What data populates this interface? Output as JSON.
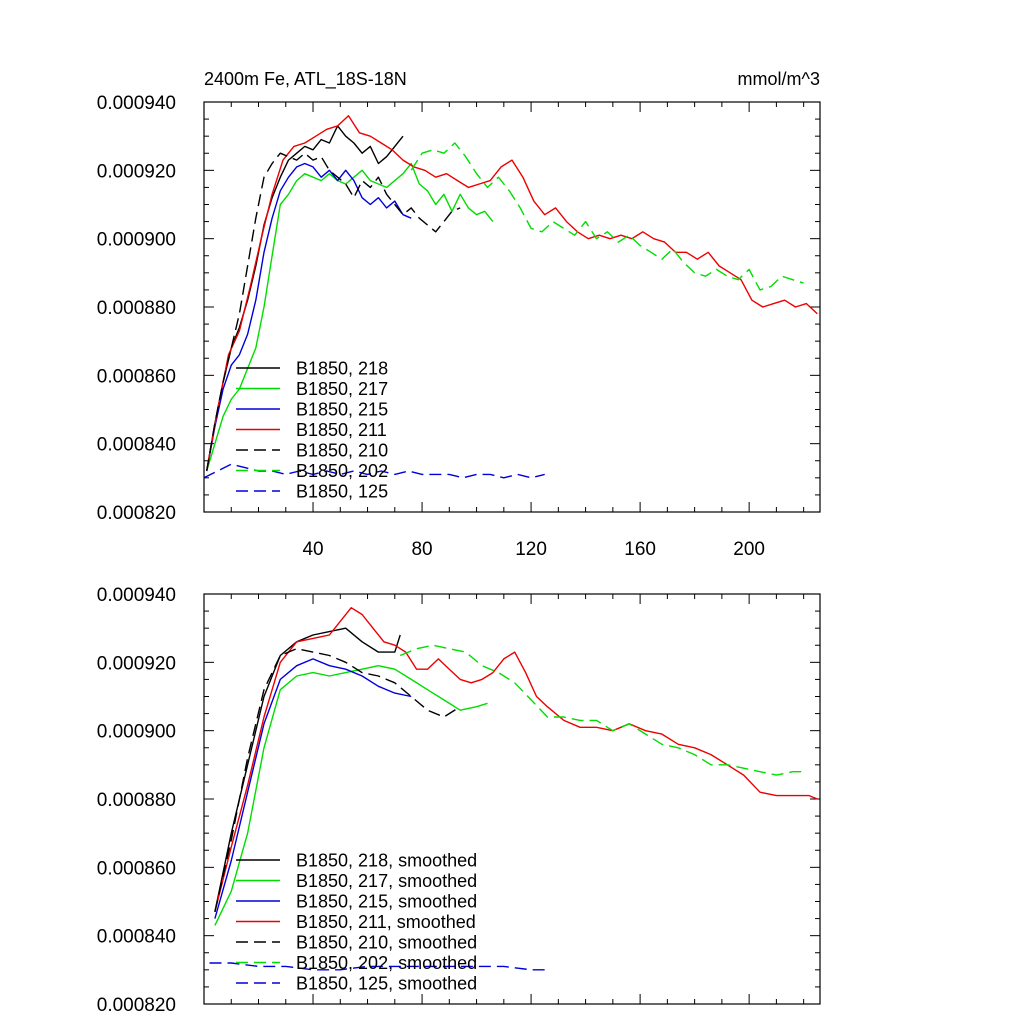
{
  "chart_data": [
    {
      "type": "line",
      "title": "2400m Fe, ATL_18S-18N",
      "units_label": "mmol/m^3",
      "xlim": [
        0,
        226
      ],
      "ylim": [
        0.00082,
        0.00094
      ],
      "xticks": [
        40,
        80,
        120,
        160,
        200
      ],
      "yticks": [
        "0.000820",
        "0.000840",
        "0.000860",
        "0.000880",
        "0.000900",
        "0.000920",
        "0.000940"
      ],
      "grid": false,
      "legend_position": "lower-left",
      "series": [
        {
          "name": "B1850, 218",
          "color": "#000000",
          "dash": false,
          "x": [
            1,
            4,
            7,
            10,
            13,
            16,
            19,
            22,
            25,
            28,
            31,
            34,
            37,
            40,
            43,
            46,
            49,
            52,
            55,
            58,
            61,
            64,
            67,
            70,
            73
          ],
          "y": [
            0.000832,
            0.000846,
            0.000858,
            0.000868,
            0.000874,
            0.000882,
            0.000892,
            0.000904,
            0.000912,
            0.000918,
            0.000923,
            0.000925,
            0.000927,
            0.000926,
            0.000929,
            0.000928,
            0.000933,
            0.00093,
            0.000928,
            0.000925,
            0.000927,
            0.000922,
            0.000924,
            0.000927,
            0.00093
          ]
        },
        {
          "name": "B1850, 217",
          "color": "#00dd00",
          "dash": false,
          "x": [
            1,
            4,
            7,
            10,
            13,
            16,
            19,
            22,
            25,
            28,
            31,
            34,
            37,
            40,
            43,
            46,
            49,
            52,
            55,
            58,
            61,
            64,
            67,
            70,
            73,
            76,
            79,
            82,
            85,
            88,
            91,
            94,
            97,
            100,
            103,
            106
          ],
          "y": [
            0.000832,
            0.00084,
            0.000848,
            0.000853,
            0.000856,
            0.000862,
            0.000868,
            0.00088,
            0.000895,
            0.00091,
            0.000913,
            0.000917,
            0.000919,
            0.000918,
            0.000917,
            0.000919,
            0.000917,
            0.000916,
            0.000918,
            0.00092,
            0.000917,
            0.000916,
            0.000915,
            0.000917,
            0.000919,
            0.000922,
            0.000916,
            0.000914,
            0.00091,
            0.000913,
            0.000908,
            0.000913,
            0.000909,
            0.000907,
            0.000908,
            0.000905
          ]
        },
        {
          "name": "B1850, 215",
          "color": "#0000dd",
          "dash": false,
          "x": [
            1,
            4,
            7,
            10,
            13,
            16,
            19,
            22,
            25,
            28,
            31,
            34,
            37,
            40,
            43,
            46,
            49,
            52,
            55,
            58,
            61,
            64,
            67,
            70,
            73,
            76
          ],
          "y": [
            0.000832,
            0.000845,
            0.000856,
            0.000863,
            0.000866,
            0.000872,
            0.000882,
            0.000896,
            0.000906,
            0.000914,
            0.000918,
            0.000921,
            0.000922,
            0.000921,
            0.000918,
            0.00092,
            0.000917,
            0.00092,
            0.000917,
            0.000912,
            0.00091,
            0.000912,
            0.000909,
            0.000911,
            0.000907,
            0.000906
          ]
        },
        {
          "name": "B1850, 211",
          "color": "#ee0000",
          "dash": false,
          "x": [
            1,
            5,
            9,
            13,
            17,
            21,
            25,
            29,
            33,
            37,
            41,
            45,
            49,
            53,
            57,
            61,
            65,
            69,
            73,
            77,
            81,
            85,
            89,
            93,
            97,
            101,
            105,
            109,
            113,
            117,
            121,
            125,
            129,
            133,
            137,
            141,
            145,
            149,
            153,
            157,
            161,
            165,
            169,
            173,
            177,
            181,
            185,
            189,
            193,
            197,
            201,
            205,
            209,
            213,
            217,
            221,
            225
          ],
          "y": [
            0.000832,
            0.00085,
            0.000866,
            0.000873,
            0.000886,
            0.0009,
            0.000913,
            0.000923,
            0.000927,
            0.000928,
            0.00093,
            0.000932,
            0.000933,
            0.000936,
            0.000931,
            0.00093,
            0.000928,
            0.000926,
            0.000923,
            0.000921,
            0.00092,
            0.000918,
            0.000919,
            0.000917,
            0.000915,
            0.000916,
            0.000917,
            0.000921,
            0.000923,
            0.000918,
            0.000911,
            0.000907,
            0.000909,
            0.000905,
            0.000902,
            0.0009,
            0.000901,
            0.0009,
            0.000901,
            0.0009,
            0.000902,
            0.0009,
            0.000899,
            0.000896,
            0.000896,
            0.000894,
            0.000896,
            0.000892,
            0.00089,
            0.000888,
            0.000882,
            0.00088,
            0.000881,
            0.000882,
            0.00088,
            0.000881,
            0.000878
          ]
        },
        {
          "name": "B1850, 210",
          "color": "#000000",
          "dash": true,
          "x": [
            1,
            4,
            7,
            10,
            13,
            16,
            19,
            22,
            25,
            28,
            31,
            34,
            37,
            40,
            43,
            46,
            49,
            52,
            55,
            58,
            61,
            64,
            67,
            70,
            73,
            76,
            79,
            82,
            85,
            88,
            91,
            94
          ],
          "y": [
            0.000832,
            0.000846,
            0.000858,
            0.000868,
            0.000878,
            0.000892,
            0.000906,
            0.000918,
            0.000922,
            0.000925,
            0.000924,
            0.000923,
            0.000925,
            0.000923,
            0.000924,
            0.00092,
            0.000918,
            0.000916,
            0.000912,
            0.000917,
            0.000915,
            0.000918,
            0.000913,
            0.00091,
            0.000907,
            0.000909,
            0.000906,
            0.000904,
            0.000902,
            0.000905,
            0.000908,
            0.000909
          ]
        },
        {
          "name": "B1850, 202",
          "color": "#00dd00",
          "dash": true,
          "x": [
            76,
            80,
            84,
            88,
            92,
            96,
            100,
            104,
            108,
            112,
            116,
            120,
            124,
            128,
            132,
            136,
            140,
            144,
            148,
            152,
            156,
            160,
            164,
            168,
            172,
            176,
            180,
            184,
            188,
            192,
            196,
            200,
            204,
            208,
            212,
            216,
            220
          ],
          "y": [
            0.00092,
            0.000925,
            0.000926,
            0.000925,
            0.000928,
            0.000924,
            0.000919,
            0.000915,
            0.000918,
            0.000914,
            0.000909,
            0.000903,
            0.000902,
            0.000905,
            0.000903,
            0.000901,
            0.000905,
            0.0009,
            0.000902,
            0.000899,
            0.000901,
            0.000898,
            0.000896,
            0.000894,
            0.000897,
            0.000893,
            0.00089,
            0.000889,
            0.000891,
            0.000889,
            0.000888,
            0.000891,
            0.000885,
            0.000886,
            0.000889,
            0.000888,
            0.000887
          ]
        },
        {
          "name": "B1850, 125",
          "color": "#0000dd",
          "dash": true,
          "x": [
            0,
            5,
            10,
            15,
            20,
            25,
            30,
            35,
            40,
            45,
            50,
            55,
            60,
            65,
            70,
            75,
            80,
            85,
            90,
            95,
            100,
            105,
            110,
            115,
            120,
            125
          ],
          "y": [
            0.00083,
            0.000832,
            0.000834,
            0.000833,
            0.000832,
            0.000832,
            0.000831,
            0.000832,
            0.000831,
            0.000832,
            0.000831,
            0.000832,
            0.000831,
            0.000832,
            0.000831,
            0.000832,
            0.000831,
            0.000831,
            0.000831,
            0.00083,
            0.000831,
            0.000831,
            0.00083,
            0.000831,
            0.00083,
            0.000831
          ]
        }
      ]
    },
    {
      "type": "line",
      "xlim": [
        0,
        226
      ],
      "ylim": [
        0.00082,
        0.00094
      ],
      "xticks": [
        40,
        80,
        120,
        160,
        200
      ],
      "yticks": [
        "0.000820",
        "0.000840",
        "0.000860",
        "0.000880",
        "0.000900",
        "0.000920",
        "0.000940"
      ],
      "grid": false,
      "legend_position": "lower-left",
      "series": [
        {
          "name": "B1850, 218, smoothed",
          "color": "#000000",
          "dash": false,
          "x": [
            4,
            10,
            16,
            22,
            28,
            34,
            40,
            46,
            52,
            58,
            64,
            70,
            72
          ],
          "y": [
            0.000847,
            0.00087,
            0.00089,
            0.00091,
            0.000922,
            0.000926,
            0.000928,
            0.000929,
            0.00093,
            0.000926,
            0.000923,
            0.000923,
            0.000928
          ]
        },
        {
          "name": "B1850, 217, smoothed",
          "color": "#00dd00",
          "dash": false,
          "x": [
            4,
            10,
            16,
            22,
            28,
            34,
            40,
            46,
            52,
            58,
            64,
            70,
            76,
            82,
            88,
            94,
            100,
            104
          ],
          "y": [
            0.000843,
            0.000853,
            0.00087,
            0.000895,
            0.000912,
            0.000916,
            0.000917,
            0.000916,
            0.000917,
            0.000918,
            0.000919,
            0.000918,
            0.000915,
            0.000912,
            0.000909,
            0.000906,
            0.000907,
            0.000908
          ]
        },
        {
          "name": "B1850, 215, smoothed",
          "color": "#0000dd",
          "dash": false,
          "x": [
            4,
            10,
            16,
            22,
            28,
            34,
            40,
            46,
            52,
            58,
            64,
            70,
            76
          ],
          "y": [
            0.000845,
            0.000862,
            0.000882,
            0.000902,
            0.000915,
            0.000919,
            0.000921,
            0.000919,
            0.000918,
            0.000916,
            0.000913,
            0.000911,
            0.00091
          ]
        },
        {
          "name": "B1850, 211, smoothed",
          "color": "#ee0000",
          "dash": false,
          "x": [
            4,
            10,
            16,
            22,
            28,
            34,
            40,
            46,
            50,
            54,
            58,
            62,
            66,
            70,
            74,
            78,
            82,
            86,
            90,
            94,
            98,
            102,
            106,
            110,
            114,
            118,
            122,
            126,
            132,
            138,
            144,
            150,
            156,
            162,
            168,
            174,
            180,
            186,
            192,
            198,
            204,
            210,
            216,
            222,
            225
          ],
          "y": [
            0.000847,
            0.000866,
            0.000884,
            0.000904,
            0.00092,
            0.000926,
            0.000927,
            0.000928,
            0.000932,
            0.000936,
            0.000934,
            0.00093,
            0.000926,
            0.000925,
            0.000923,
            0.000918,
            0.000918,
            0.000921,
            0.000918,
            0.000915,
            0.000914,
            0.000915,
            0.000917,
            0.000921,
            0.000923,
            0.000917,
            0.00091,
            0.000907,
            0.000903,
            0.000901,
            0.000901,
            0.0009,
            0.000902,
            0.0009,
            0.000899,
            0.000896,
            0.000895,
            0.000893,
            0.00089,
            0.000887,
            0.000882,
            0.000881,
            0.000881,
            0.000881,
            0.00088
          ]
        },
        {
          "name": "B1850, 210, smoothed",
          "color": "#000000",
          "dash": true,
          "x": [
            4,
            10,
            16,
            22,
            28,
            34,
            40,
            46,
            52,
            58,
            64,
            70,
            76,
            82,
            88,
            94
          ],
          "y": [
            0.000847,
            0.000868,
            0.000892,
            0.000912,
            0.000922,
            0.000924,
            0.000923,
            0.000922,
            0.00092,
            0.000917,
            0.000916,
            0.000914,
            0.00091,
            0.000906,
            0.000904,
            0.000907
          ]
        },
        {
          "name": "B1850, 202, smoothed",
          "color": "#00dd00",
          "dash": true,
          "x": [
            72,
            78,
            84,
            90,
            96,
            102,
            108,
            114,
            120,
            126,
            132,
            138,
            144,
            150,
            156,
            162,
            168,
            174,
            180,
            186,
            192,
            198,
            204,
            210,
            216,
            220
          ],
          "y": [
            0.000922,
            0.000924,
            0.000925,
            0.000924,
            0.000923,
            0.000919,
            0.000917,
            0.000914,
            0.000909,
            0.000904,
            0.000904,
            0.000903,
            0.000903,
            0.0009,
            0.000902,
            0.000899,
            0.000896,
            0.000895,
            0.000893,
            0.00089,
            0.00089,
            0.000889,
            0.000888,
            0.000887,
            0.000888,
            0.000888
          ]
        },
        {
          "name": "B1850, 125, smoothed",
          "color": "#0000dd",
          "dash": true,
          "x": [
            2,
            10,
            20,
            30,
            40,
            50,
            60,
            70,
            80,
            90,
            100,
            110,
            120,
            125
          ],
          "y": [
            0.000832,
            0.000832,
            0.000831,
            0.000831,
            0.00083,
            0.00083,
            0.000831,
            0.000831,
            0.000831,
            0.000831,
            0.000831,
            0.000831,
            0.00083,
            0.00083
          ]
        }
      ]
    }
  ]
}
